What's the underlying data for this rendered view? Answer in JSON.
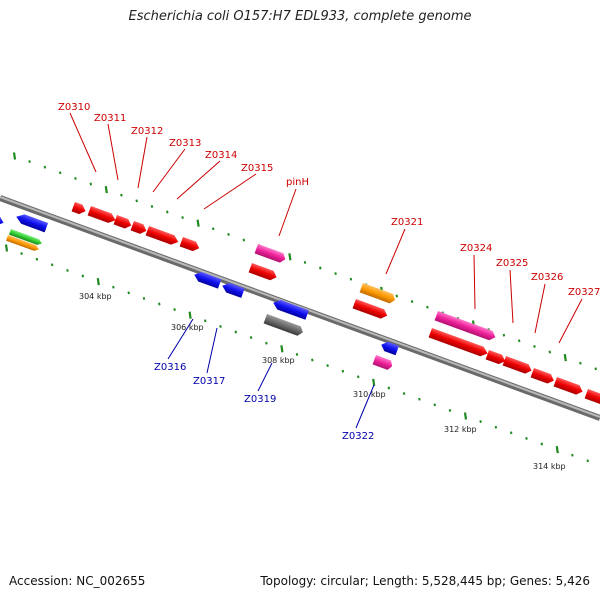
{
  "title": "Escherichia coli O157:H7 EDL933, complete genome",
  "footer": {
    "accession": "Accession: NC_002655",
    "summary": "Topology: circular; Length: 5,528,445 bp; Genes: 5,426"
  },
  "colors": {
    "forward_label": "#cc0000",
    "reverse_label": "#0000aa",
    "tick": "#1f8a1f",
    "backbone": "#888888"
  },
  "scale_labels": [
    "304 kbp",
    "306 kbp",
    "308 kbp",
    "310 kbp",
    "312 kbp",
    "314 kbp"
  ],
  "forward_gene_labels": [
    "Z0310",
    "Z0311",
    "Z0312",
    "Z0313",
    "Z0314",
    "Z0315",
    "pinH",
    "Z0321",
    "Z0324",
    "Z0325",
    "Z0326",
    "Z0327"
  ],
  "reverse_gene_labels": [
    "Z0316",
    "Z0317",
    "Z0319",
    "Z0322"
  ]
}
